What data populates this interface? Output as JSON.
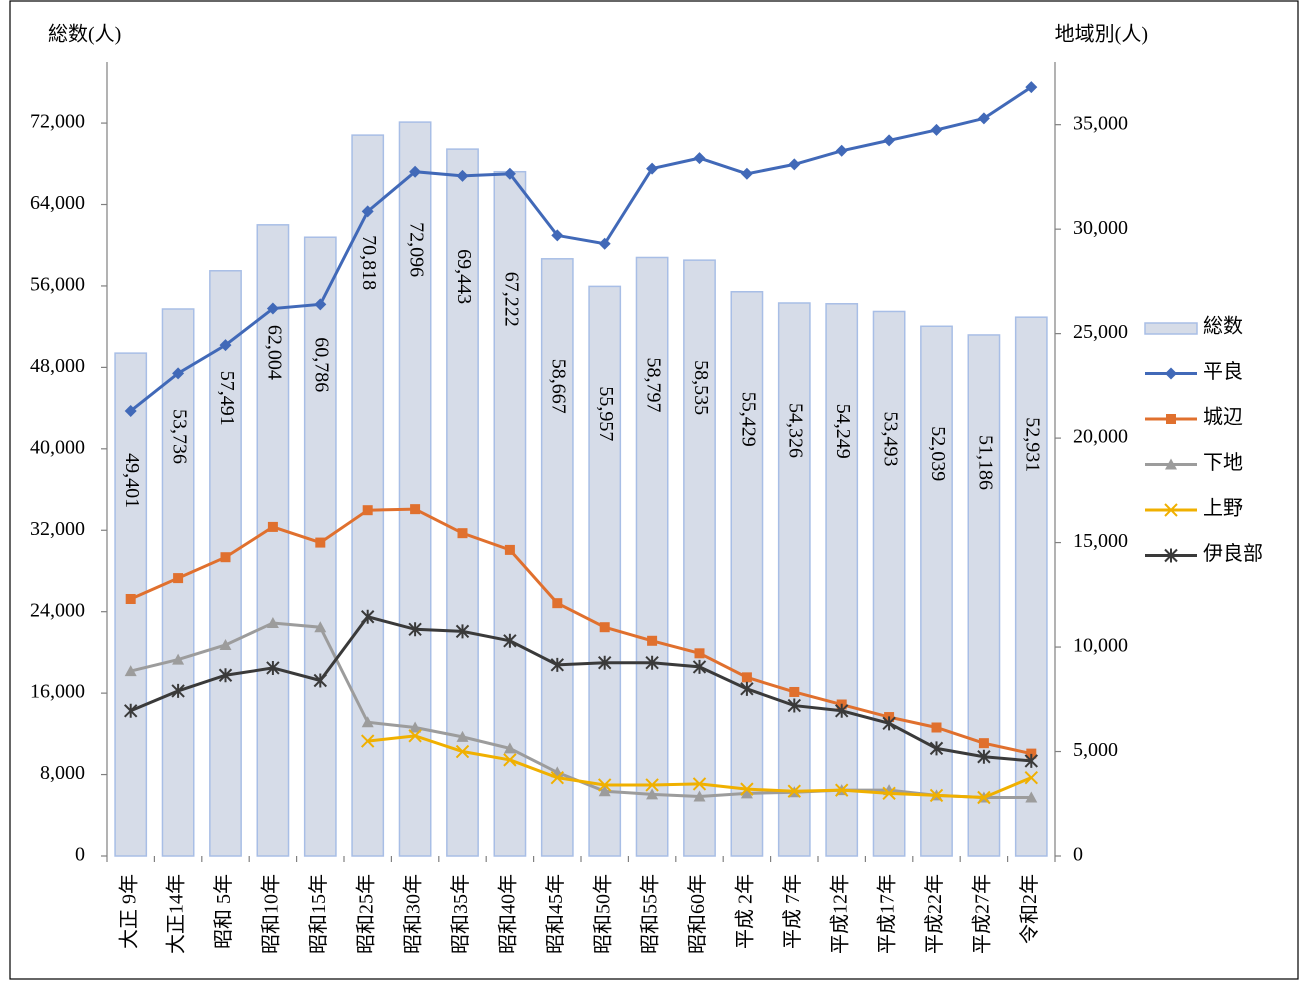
{
  "chart_data": {
    "type": "bar-line",
    "ylabel": "総数(人)",
    "y2label": "地域別(人)",
    "categories": [
      "大正 9年",
      "大正14年",
      "昭和 5年",
      "昭和10年",
      "昭和15年",
      "昭和25年",
      "昭和30年",
      "昭和35年",
      "昭和40年",
      "昭和45年",
      "昭和50年",
      "昭和55年",
      "昭和60年",
      "平成 2年",
      "平成 7年",
      "平成12年",
      "平成17年",
      "平成22年",
      "平成27年",
      "令和2年"
    ],
    "series": [
      {
        "name": "総数",
        "type": "bar",
        "axis": "y",
        "color": "#d6dce8",
        "edge": "#a8bee6",
        "values": [
          49401,
          53736,
          57491,
          62004,
          60786,
          70818,
          72096,
          69443,
          67222,
          58667,
          55957,
          58797,
          58535,
          55429,
          54326,
          54249,
          53493,
          52039,
          51186,
          52931
        ],
        "value_labels": [
          "49,401",
          "53,736",
          "57,491",
          "62,004",
          "60,786",
          "70,818",
          "72,096",
          "69,443",
          "67,222",
          "58,667",
          "55,957",
          "58,797",
          "58,535",
          "55,429",
          "54,326",
          "54,249",
          "53,493",
          "52,039",
          "51,186",
          "52,931"
        ]
      },
      {
        "name": "平良",
        "type": "line",
        "axis": "y2",
        "color": "#4169b8",
        "marker": "diamond",
        "values": [
          21300,
          23100,
          24450,
          26200,
          26400,
          30850,
          32750,
          32550,
          32650,
          29700,
          29300,
          32900,
          33400,
          32650,
          33100,
          33750,
          34250,
          34750,
          35300,
          36800
        ]
      },
      {
        "name": "城辺",
        "type": "line",
        "axis": "y2",
        "color": "#e0702e",
        "marker": "square",
        "values": [
          12300,
          13300,
          14300,
          15750,
          15000,
          16550,
          16600,
          15450,
          14650,
          12100,
          10950,
          10300,
          9700,
          8550,
          7850,
          7250,
          6650,
          6150,
          5400,
          4900
        ]
      },
      {
        "name": "下地",
        "type": "line",
        "axis": "y2",
        "color": "#9c9c9c",
        "marker": "triangle",
        "values": [
          8850,
          9400,
          10100,
          11150,
          10950,
          6400,
          6150,
          5700,
          5150,
          4000,
          3100,
          2950,
          2850,
          3000,
          3050,
          3150,
          3150,
          2900,
          2800,
          2800
        ]
      },
      {
        "name": "上野",
        "type": "line",
        "axis": "y2",
        "color": "#f0b000",
        "marker": "x",
        "values": [
          null,
          null,
          null,
          null,
          null,
          5500,
          5750,
          5000,
          4600,
          3750,
          3400,
          3400,
          3450,
          3200,
          3100,
          3150,
          3000,
          2900,
          2800,
          3750
        ]
      },
      {
        "name": "伊良部",
        "type": "line",
        "axis": "y2",
        "color": "#3a3a3a",
        "marker": "star",
        "values": [
          6950,
          7900,
          8650,
          9000,
          8400,
          11450,
          10850,
          10750,
          10300,
          9150,
          9250,
          9250,
          9050,
          8000,
          7200,
          6950,
          6350,
          5150,
          4750,
          4550
        ]
      }
    ],
    "ylim": [
      0,
      78000
    ],
    "yticks": [
      0,
      {
        "value": 8000,
        "label": "8,000"
      },
      {
        "value": 16000,
        "label": "16,000"
      },
      {
        "value": 24000,
        "label": "24,000"
      },
      {
        "value": 32000,
        "label": "32,000"
      },
      {
        "value": 40000,
        "label": "40,000"
      },
      {
        "value": 48000,
        "label": "48,000"
      },
      {
        "value": 56000,
        "label": "56,000"
      },
      {
        "value": 64000,
        "label": "64,000"
      },
      {
        "value": 72000,
        "label": "72,000"
      }
    ],
    "y2lim": [
      0,
      38000
    ],
    "y2ticks": [
      0,
      {
        "value": 5000,
        "label": "5,000"
      },
      {
        "value": 10000,
        "label": "10,000"
      },
      {
        "value": 15000,
        "label": "15,000"
      },
      {
        "value": 20000,
        "label": "20,000"
      },
      {
        "value": 25000,
        "label": "25,000"
      },
      {
        "value": 30000,
        "label": "30,000"
      },
      {
        "value": 35000,
        "label": "35,000"
      }
    ],
    "legend": "right",
    "grid": false
  }
}
